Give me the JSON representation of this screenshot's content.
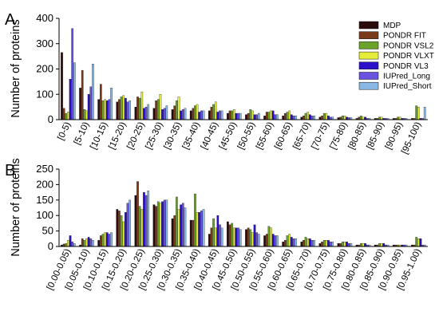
{
  "panels": [
    {
      "label": "A"
    },
    {
      "label": "B"
    }
  ],
  "legend": {
    "entries": [
      "MDP",
      "PONDR FIT",
      "PONDR VSL2",
      "PONDR VLXT",
      "PONDR VL3",
      "IUPred_Long",
      "IUPred_Short"
    ],
    "colors": [
      "#2a0a0a",
      "#7a3a1a",
      "#6aa22a",
      "#e6ec3a",
      "#2a10c8",
      "#6a52e0",
      "#8ab8e6"
    ]
  },
  "chart_data": [
    {
      "type": "bar",
      "panel": "A",
      "xlabel": "",
      "ylabel": "Number of proteins",
      "ylim": [
        0,
        400
      ],
      "yticks": [
        "0",
        "100",
        "200",
        "300",
        "400"
      ],
      "legend_position": "top-right",
      "categories": [
        "[0-5)",
        "[5-10)",
        "[10-15)",
        "[15-20)",
        "[20-25)",
        "[25-30)",
        "[30-35)",
        "[35-40)",
        "[40-45)",
        "[45-50)",
        "[50-55)",
        "[55-60)",
        "[60-65)",
        "[65-70)",
        "[70-75)",
        "[75-80)",
        "[80-85)",
        "[85-90)",
        "[90-95)",
        "[95-100)"
      ],
      "series": [
        {
          "name": "MDP",
          "values": [
            265,
            125,
            80,
            70,
            50,
            45,
            40,
            35,
            35,
            25,
            20,
            15,
            15,
            10,
            10,
            8,
            5,
            5,
            5,
            5
          ]
        },
        {
          "name": "PONDR FIT",
          "values": [
            45,
            195,
            140,
            80,
            90,
            75,
            55,
            45,
            50,
            35,
            25,
            30,
            25,
            15,
            15,
            10,
            10,
            5,
            5,
            5
          ]
        },
        {
          "name": "PONDR VSL2",
          "values": [
            25,
            40,
            75,
            90,
            85,
            80,
            75,
            55,
            60,
            35,
            40,
            30,
            30,
            25,
            25,
            15,
            15,
            10,
            10,
            55
          ]
        },
        {
          "name": "PONDR VLXT",
          "values": [
            30,
            35,
            80,
            95,
            110,
            100,
            90,
            60,
            70,
            40,
            35,
            35,
            35,
            30,
            25,
            15,
            10,
            10,
            10,
            50
          ]
        },
        {
          "name": "PONDR VL3",
          "values": [
            160,
            100,
            75,
            85,
            45,
            40,
            35,
            30,
            30,
            25,
            20,
            35,
            20,
            20,
            15,
            10,
            10,
            5,
            5,
            5
          ]
        },
        {
          "name": "IUPred_Long",
          "values": [
            360,
            130,
            80,
            70,
            50,
            45,
            40,
            35,
            35,
            25,
            20,
            20,
            15,
            15,
            10,
            8,
            5,
            5,
            5,
            5
          ]
        },
        {
          "name": "IUPred_Short",
          "values": [
            225,
            220,
            125,
            75,
            60,
            55,
            45,
            35,
            35,
            25,
            25,
            20,
            15,
            15,
            10,
            8,
            5,
            5,
            5,
            50
          ]
        }
      ]
    },
    {
      "type": "bar",
      "panel": "B",
      "xlabel": "",
      "ylabel": "Number of proteins",
      "ylim": [
        0,
        250
      ],
      "yticks": [
        "0",
        "50",
        "100",
        "150",
        "200",
        "250"
      ],
      "categories": [
        "[0.00-0.05)",
        "[0.05-0.10)",
        "[0.10-0.15)",
        "[0.15-0.20)",
        "[0.20-0.25)",
        "[0.25-0.30)",
        "[0.30-0.35)",
        "[0.35-0.40)",
        "[0.40-0.45)",
        "[0.45-0.50)",
        "[0.50-0.55)",
        "[0.55-0.60)",
        "[0.60-0.65)",
        "[0.65-0.70)",
        "[0.70-0.75)",
        "[0.75-0.80)",
        "[0.80-0.85)",
        "[0.85-0.90)",
        "[0.90-0.95)",
        "[0.95-1.00)"
      ],
      "series": [
        {
          "name": "MDP",
          "values": [
            5,
            5,
            20,
            120,
            165,
            135,
            90,
            85,
            40,
            80,
            55,
            35,
            15,
            15,
            10,
            10,
            5,
            5,
            5,
            5
          ]
        },
        {
          "name": "PONDR FIT",
          "values": [
            8,
            25,
            35,
            115,
            210,
            130,
            100,
            85,
            60,
            70,
            60,
            40,
            20,
            20,
            15,
            10,
            5,
            5,
            5,
            5
          ]
        },
        {
          "name": "PONDR VSL2",
          "values": [
            10,
            20,
            40,
            100,
            130,
            145,
            160,
            170,
            90,
            75,
            55,
            65,
            35,
            30,
            20,
            15,
            10,
            10,
            5,
            30
          ]
        },
        {
          "name": "PONDR VLXT",
          "values": [
            20,
            25,
            45,
            80,
            120,
            140,
            120,
            110,
            60,
            60,
            45,
            60,
            40,
            25,
            20,
            15,
            10,
            10,
            5,
            25
          ]
        },
        {
          "name": "PONDR VL3",
          "values": [
            35,
            30,
            45,
            110,
            175,
            145,
            135,
            110,
            100,
            60,
            70,
            40,
            30,
            25,
            20,
            15,
            10,
            10,
            5,
            25
          ]
        },
        {
          "name": "IUPred_Long",
          "values": [
            15,
            25,
            40,
            140,
            165,
            150,
            140,
            115,
            70,
            60,
            45,
            35,
            25,
            20,
            15,
            10,
            5,
            5,
            5,
            5
          ]
        },
        {
          "name": "IUPred_Short",
          "values": [
            10,
            20,
            45,
            150,
            180,
            150,
            125,
            120,
            60,
            55,
            40,
            35,
            25,
            20,
            15,
            10,
            5,
            5,
            5,
            5
          ]
        }
      ]
    }
  ]
}
